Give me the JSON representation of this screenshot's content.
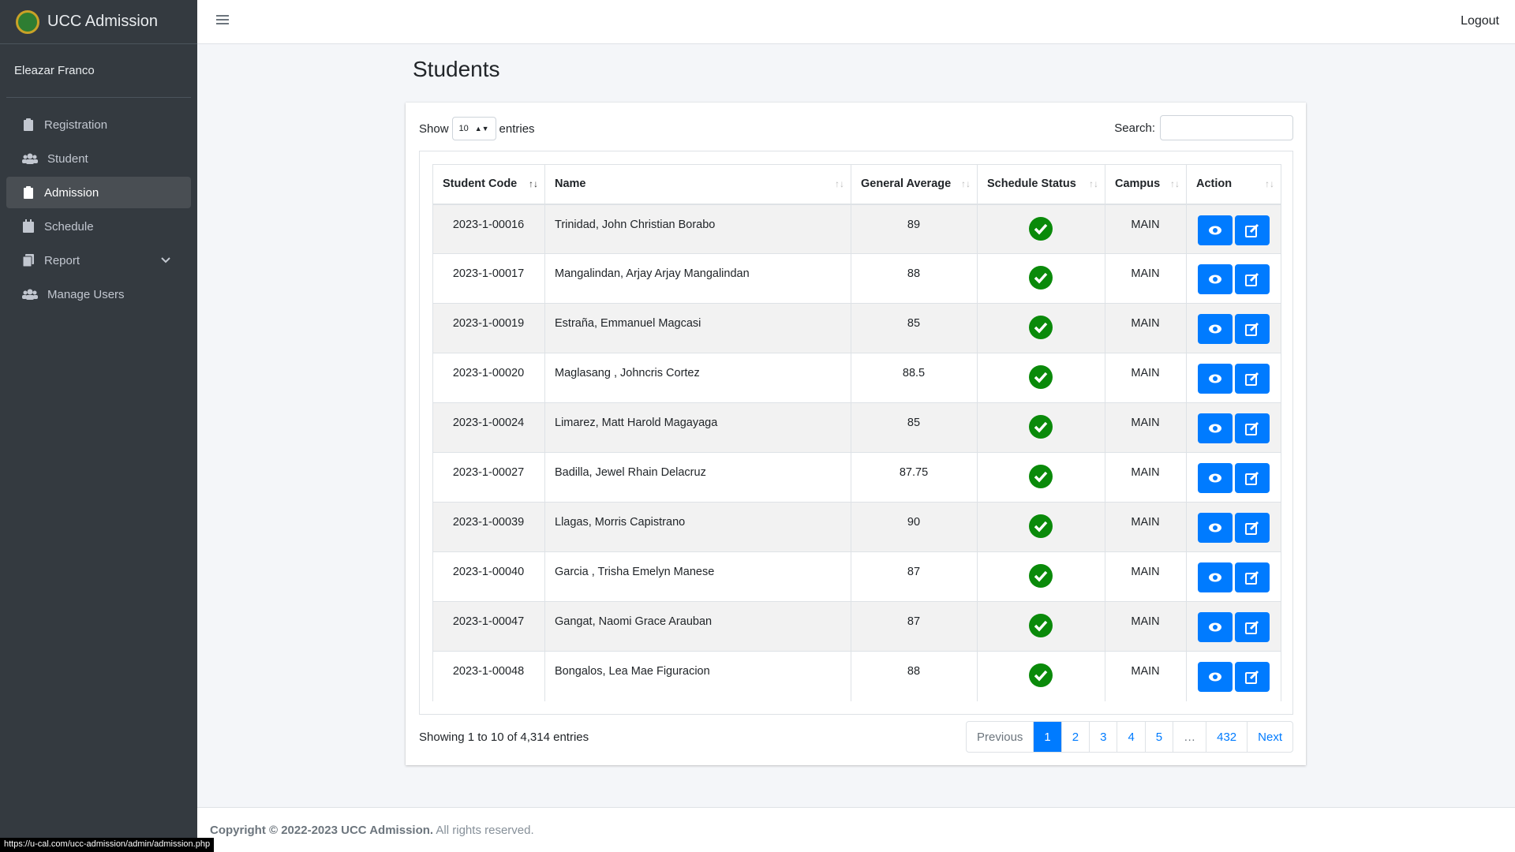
{
  "sidebar": {
    "brand": "UCC Admission",
    "user": "Eleazar Franco",
    "nav": [
      "Registration",
      "Student",
      "Admission",
      "Schedule",
      "Report",
      "Manage Users"
    ]
  },
  "topbar": {
    "logout": "Logout"
  },
  "page": {
    "title": "Students"
  },
  "controls": {
    "show": "Show",
    "page_size": "10",
    "entries": "entries",
    "search": "Search:"
  },
  "table": {
    "columns": [
      "Student Code",
      "Name",
      "General Average",
      "Schedule Status",
      "Campus",
      "Action"
    ],
    "rows": [
      [
        "2023-1-00016",
        "Trinidad, John Christian Borabo",
        "89",
        "MAIN"
      ],
      [
        "2023-1-00017",
        "Mangalindan, Arjay Arjay Mangalindan",
        "88",
        "MAIN"
      ],
      [
        "2023-1-00019",
        "Estraña, Emmanuel Magcasi",
        "85",
        "MAIN"
      ],
      [
        "2023-1-00020",
        "Maglasang , Johncris Cortez",
        "88.5",
        "MAIN"
      ],
      [
        "2023-1-00024",
        "Limarez, Matt Harold Magayaga",
        "85",
        "MAIN"
      ],
      [
        "2023-1-00027",
        "Badilla, Jewel Rhain Delacruz",
        "87.75",
        "MAIN"
      ],
      [
        "2023-1-00039",
        "Llagas, Morris Capistrano",
        "90",
        "MAIN"
      ],
      [
        "2023-1-00040",
        "Garcia , Trisha Emelyn Manese",
        "87",
        "MAIN"
      ],
      [
        "2023-1-00047",
        "Gangat, Naomi Grace Arauban",
        "87",
        "MAIN"
      ],
      [
        "2023-1-00048",
        "Bongalos, Lea Mae Figuracion",
        "88",
        "MAIN"
      ]
    ]
  },
  "info": "Showing 1 to 10 of 4,314 entries",
  "pagination": [
    "Previous",
    "1",
    "2",
    "3",
    "4",
    "5",
    "…",
    "432",
    "Next"
  ],
  "footer": {
    "copyright": "Copyright © 2022-2023 UCC Admission.",
    "rights": "All rights reserved."
  },
  "status_url": "https://u-cal.com/ucc-admission/admin/admission.php"
}
